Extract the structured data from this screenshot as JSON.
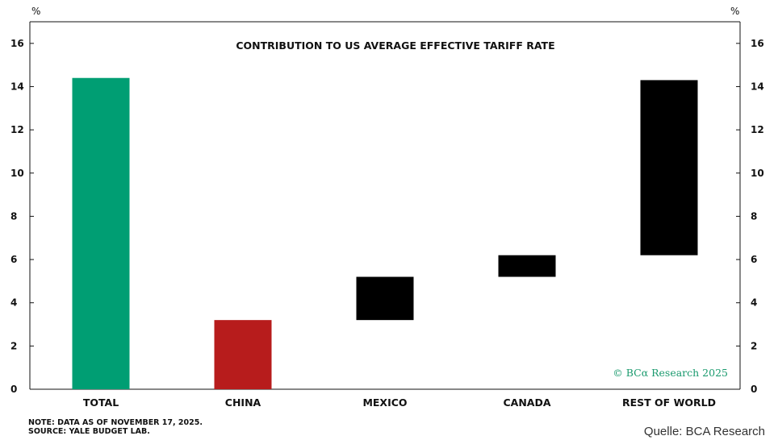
{
  "chart_data": {
    "type": "bar",
    "title": "CONTRIBUTION TO US AVERAGE EFFECTIVE TARIFF RATE",
    "y_unit_left": "%",
    "y_unit_right": "%",
    "ylim": [
      0,
      17
    ],
    "yticks": [
      0,
      2,
      4,
      6,
      8,
      10,
      12,
      14,
      16
    ],
    "grid": false,
    "categories": [
      "TOTAL",
      "CHINA",
      "MEXICO",
      "CANADA",
      "REST OF WORLD"
    ],
    "series": [
      {
        "values": [
          {
            "category": "TOTAL",
            "start": 0,
            "end": 14.4,
            "color": "#009e73"
          },
          {
            "category": "CHINA",
            "start": 0,
            "end": 3.2,
            "color": "#b71c1c"
          },
          {
            "category": "MEXICO",
            "start": 3.2,
            "end": 5.2,
            "color": "#000000"
          },
          {
            "category": "CANADA",
            "start": 5.2,
            "end": 6.2,
            "color": "#000000"
          },
          {
            "category": "REST OF WORLD",
            "start": 6.2,
            "end": 14.3,
            "color": "#000000"
          }
        ]
      }
    ],
    "watermark": "© BCα Research 2025"
  },
  "footer": {
    "note": "NOTE: DATA AS OF NOVEMBER 17, 2025.",
    "source": "SOURCE: YALE BUDGET LAB.",
    "credit": "Quelle: BCA Research"
  }
}
